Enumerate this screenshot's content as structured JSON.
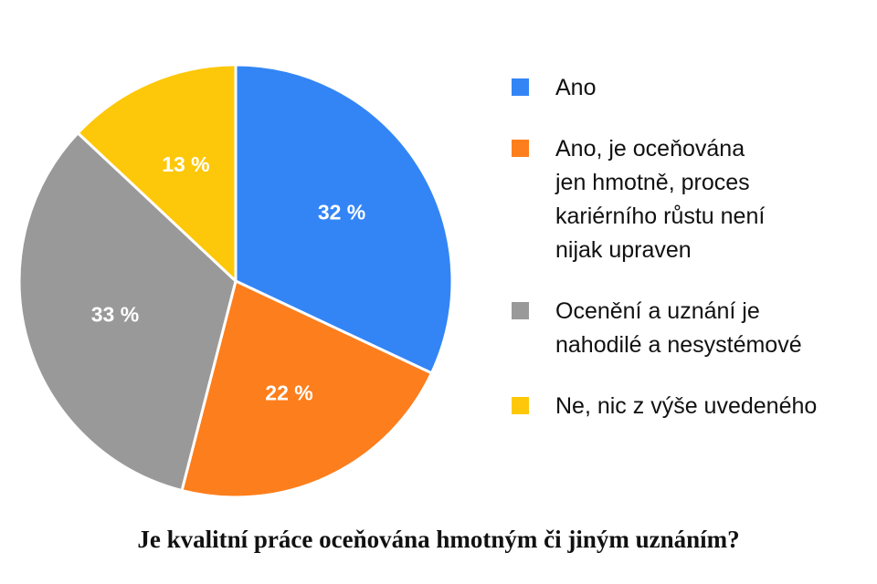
{
  "chart_data": {
    "type": "pie",
    "title": "Je kvalitní práce oceňována hmotným či jiným uznáním?",
    "slices": [
      {
        "label": "Ano",
        "value": 32,
        "display": "32 %",
        "color": "#3385F5"
      },
      {
        "label": "Ano, je oceňována\njen hmotně, proces\nkariérního růstu není\nnijak upraven",
        "value": 22,
        "display": "22 %",
        "color": "#FD7E1C"
      },
      {
        "label": "Ocenění a uznání je\nnahodilé a nesystémové",
        "value": 33,
        "display": "33 %",
        "color": "#999999"
      },
      {
        "label": "Ne, nic z výše uvedeného",
        "value": 13,
        "display": "13 %",
        "color": "#FDC80A"
      }
    ],
    "start_angle_deg": 0,
    "direction": "clockwise",
    "legend_position": "right"
  }
}
